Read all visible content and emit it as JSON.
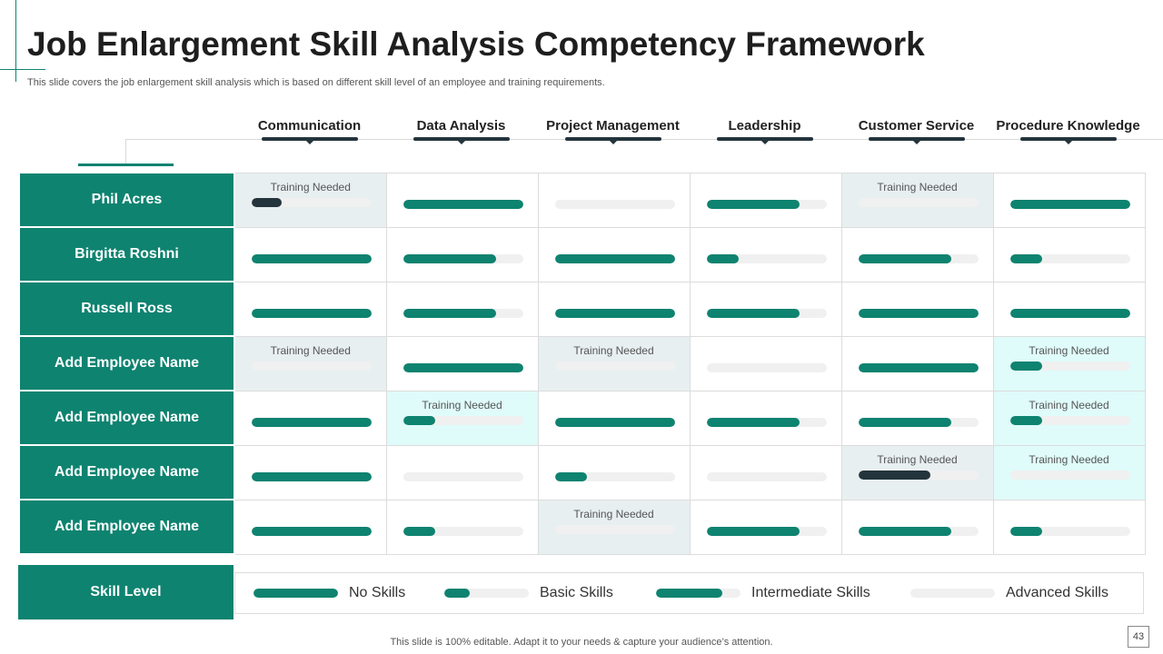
{
  "title": "Job Enlargement Skill Analysis Competency Framework",
  "subtitle": "This slide covers the job enlargement skill analysis which is based on different skill level of an employee and training requirements.",
  "columns": [
    "Communication",
    "Data Analysis",
    "Project Management",
    "Leadership",
    "Customer Service",
    "Procedure Knowledge"
  ],
  "training_label": "Training  Needed",
  "colors": {
    "accent": "#0e8370",
    "dark": "#24343c",
    "track": "#f0f0f0",
    "shade_grey": "#e8eff1",
    "shade_cyan": "#dffbfa"
  },
  "rows": [
    {
      "name": "Phil Acres",
      "cells": [
        {
          "level": 0.25,
          "training": true,
          "shade": "grey",
          "dark": true
        },
        {
          "level": 1.0
        },
        {
          "level": 0
        },
        {
          "level": 0.78
        },
        {
          "level": 0,
          "training": true,
          "shade": "grey"
        },
        {
          "level": 1.0
        }
      ]
    },
    {
      "name": "Birgitta Roshni",
      "cells": [
        {
          "level": 1.0
        },
        {
          "level": 0.78
        },
        {
          "level": 1.0
        },
        {
          "level": 0.27
        },
        {
          "level": 0.78
        },
        {
          "level": 0.27
        }
      ]
    },
    {
      "name": "Russell Ross",
      "cells": [
        {
          "level": 1.0
        },
        {
          "level": 0.78
        },
        {
          "level": 1.0
        },
        {
          "level": 0.78
        },
        {
          "level": 1.0
        },
        {
          "level": 1.0
        }
      ]
    },
    {
      "name": "Add Employee Name",
      "cells": [
        {
          "level": 0,
          "training": true,
          "shade": "grey"
        },
        {
          "level": 1.0
        },
        {
          "level": 0,
          "training": true,
          "shade": "grey"
        },
        {
          "level": 0
        },
        {
          "level": 1.0
        },
        {
          "level": 0.27,
          "training": true,
          "shade": "cyan"
        }
      ]
    },
    {
      "name": "Add Employee Name",
      "cells": [
        {
          "level": 1.0
        },
        {
          "level": 0.27,
          "training": true,
          "shade": "cyan"
        },
        {
          "level": 1.0
        },
        {
          "level": 0.78
        },
        {
          "level": 0.78
        },
        {
          "level": 0.27,
          "training": true,
          "shade": "cyan"
        }
      ]
    },
    {
      "name": "Add Employee Name",
      "cells": [
        {
          "level": 1.0
        },
        {
          "level": 0
        },
        {
          "level": 0.27
        },
        {
          "level": 0
        },
        {
          "level": 0.6,
          "training": true,
          "shade": "grey",
          "dark": true
        },
        {
          "level": 0,
          "training": true,
          "shade": "cyan"
        }
      ]
    },
    {
      "name": "Add Employee Name",
      "cells": [
        {
          "level": 1.0
        },
        {
          "level": 0.27
        },
        {
          "level": 0,
          "training": true,
          "shade": "grey"
        },
        {
          "level": 0.78
        },
        {
          "level": 0.78
        },
        {
          "level": 0.27
        }
      ]
    }
  ],
  "skill_level": {
    "label": "Skill Level",
    "legend": [
      {
        "label": "No Skills",
        "level": 1.0
      },
      {
        "label": "Basic Skills",
        "level": 0.3
      },
      {
        "label": "Intermediate Skills",
        "level": 0.78
      },
      {
        "label": "Advanced Skills",
        "level": 0
      }
    ]
  },
  "footer": "This slide is 100% editable. Adapt it to your needs & capture your audience’s attention.",
  "page_number": "43"
}
